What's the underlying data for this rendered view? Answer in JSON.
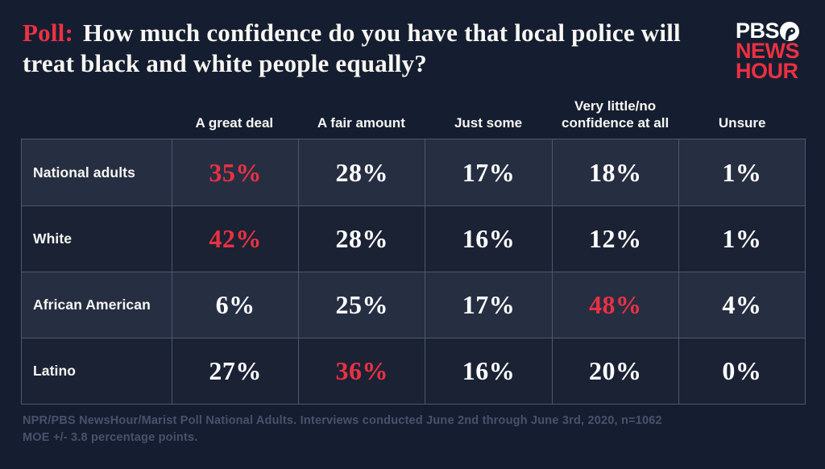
{
  "theme": {
    "background": "#151e30",
    "accent_red": "#ea3142",
    "row_odd_bg": "#262e42",
    "row_even_bg": "#1a2234",
    "grid_line": "#4d586d",
    "muted_text": "#47526b",
    "text": "#f7f6f2"
  },
  "header": {
    "title_prefix": "Poll:",
    "title_rest": "How much confidence do you have that local police will treat black and white people equally?",
    "logo": {
      "pbs": "PBS",
      "news": "NEWS",
      "hour": "HOUR"
    }
  },
  "chart_data": {
    "type": "table",
    "title": "Poll: How much confidence do you have that local police will treat black and white people equally?",
    "columns": [
      "A great deal",
      "A fair amount",
      "Just some",
      "Very little/no confidence at all",
      "Unsure"
    ],
    "rows": [
      {
        "label": "National adults",
        "values": [
          "35%",
          "28%",
          "17%",
          "18%",
          "1%"
        ],
        "highlight": 0
      },
      {
        "label": "White",
        "values": [
          "42%",
          "28%",
          "16%",
          "12%",
          "1%"
        ],
        "highlight": 0
      },
      {
        "label": "African American",
        "values": [
          "6%",
          "25%",
          "17%",
          "48%",
          "4%"
        ],
        "highlight": 3
      },
      {
        "label": "Latino",
        "values": [
          "27%",
          "36%",
          "16%",
          "20%",
          "0%"
        ],
        "highlight": 1
      }
    ],
    "highlight_color": "#ea3142"
  },
  "footer": {
    "source_note": "NPR/PBS NewsHour/Marist Poll National Adults. Interviews conducted June 2nd through June 3rd, 2020, n=1062 MOE +/- 3.8 percentage points."
  }
}
